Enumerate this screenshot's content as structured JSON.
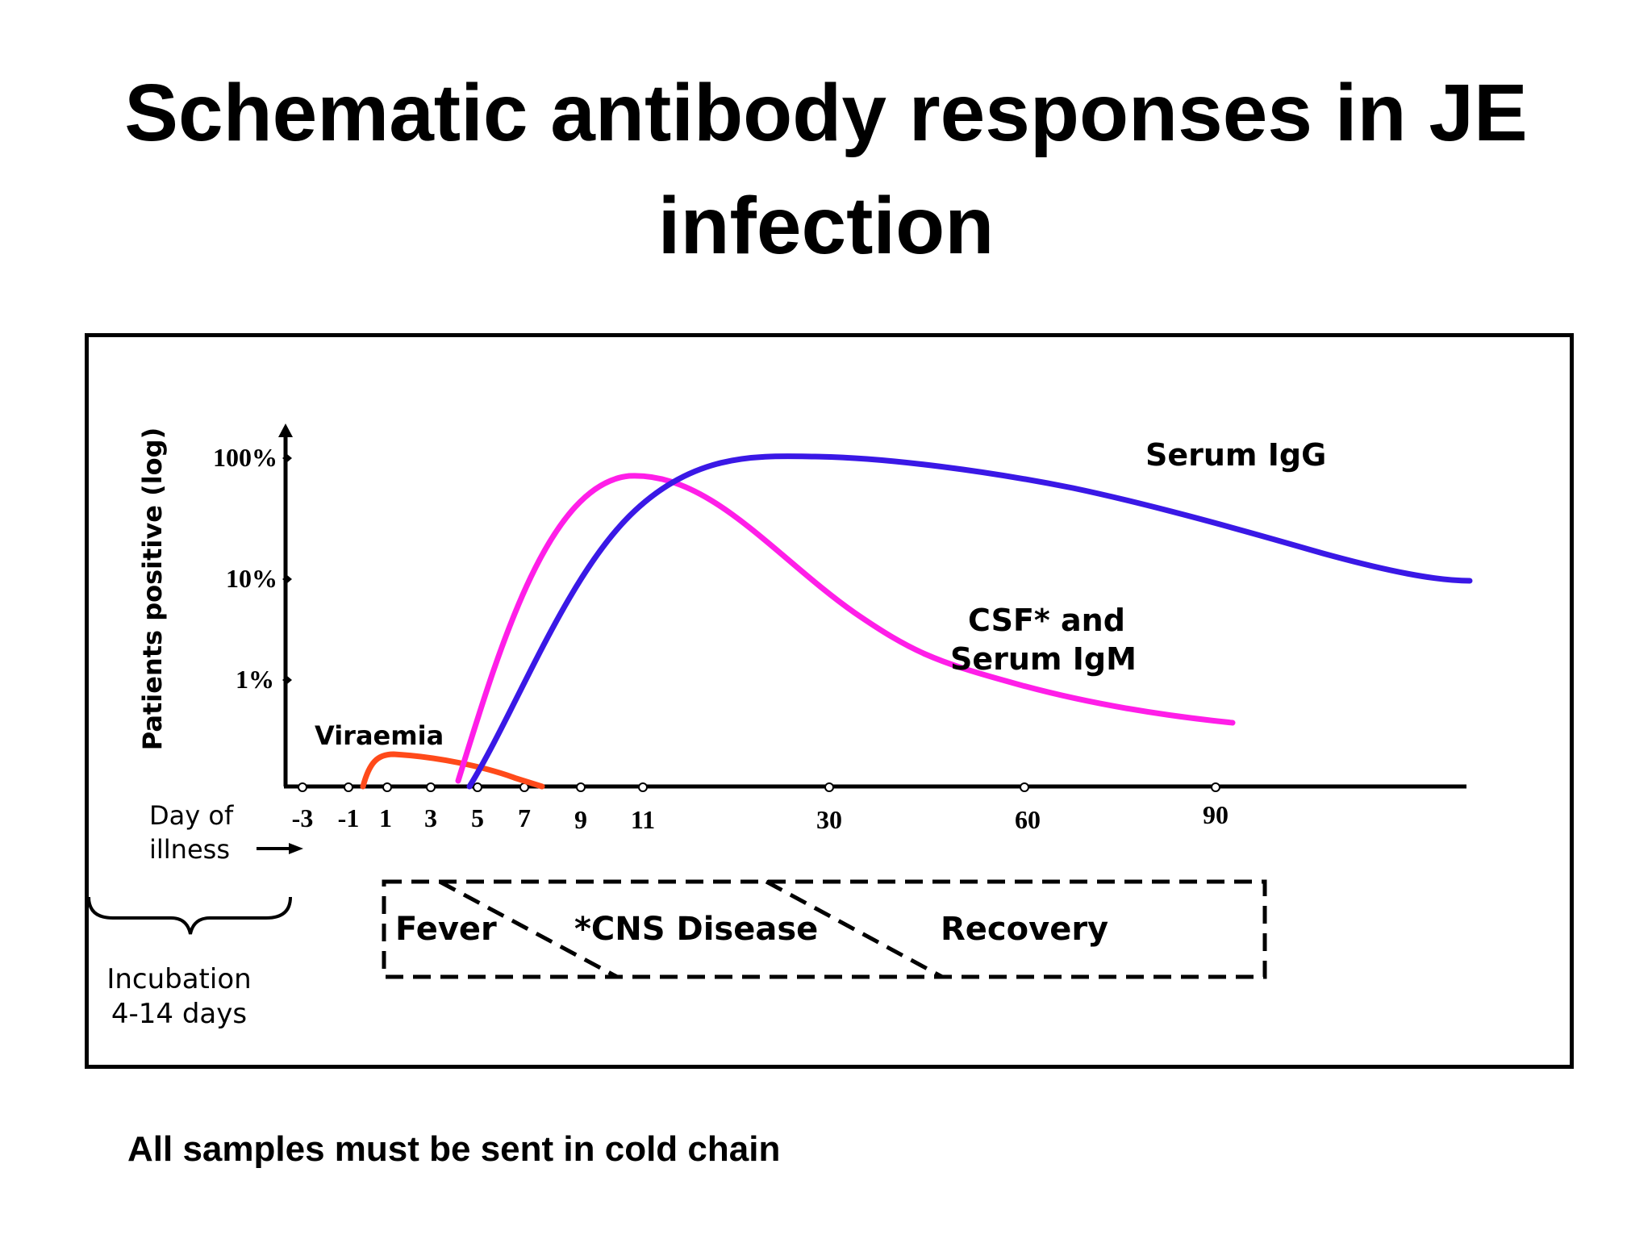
{
  "title_line1": "Schematic antibody responses in JE",
  "title_line2": "infection",
  "footer": "All samples must be sent in cold chain",
  "chart_data": {
    "type": "line",
    "title": "Schematic antibody responses in JE infection",
    "ylabel": "Patients positive (log)",
    "xlabel_line1": "Day of",
    "xlabel_line2": "illness",
    "x_ticks": [
      "-3",
      "-1",
      "1",
      "3",
      "5",
      "7",
      "9",
      "11",
      "30",
      "60",
      "90"
    ],
    "y_ticks": [
      "100%",
      "10%",
      "1%"
    ],
    "series": [
      {
        "name": "Viraemia",
        "label": "Viraemia",
        "color": "#ff4a1a"
      },
      {
        "name": "CSF and Serum IgM",
        "label_line1": "CSF* and",
        "label_line2": "Serum IgM",
        "color": "#ff1ee8"
      },
      {
        "name": "Serum IgG",
        "label": "Serum IgG",
        "color": "#3a18e6"
      }
    ],
    "phases": [
      "Fever",
      "*CNS Disease",
      "Recovery"
    ],
    "incubation_line1": "Incubation",
    "incubation_line2": "4-14 days"
  }
}
